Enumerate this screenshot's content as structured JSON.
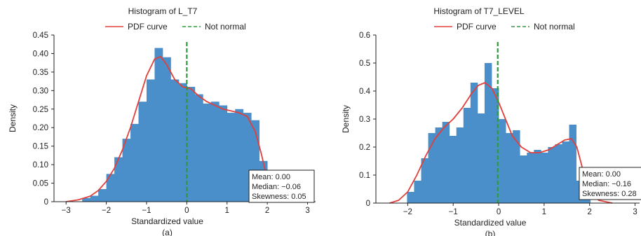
{
  "chart_data": [
    {
      "type": "bar",
      "title": "Histogram of L_T7",
      "panel_label": "(a)",
      "xlabel": "Standardized value",
      "ylabel": "Density",
      "xlim": [
        -3.3,
        3.2
      ],
      "ylim": [
        0,
        0.45
      ],
      "xticks": [
        -3,
        -2,
        -1,
        0,
        1,
        2,
        3
      ],
      "yticks": [
        0,
        0.05,
        0.1,
        0.15,
        0.2,
        0.25,
        0.3,
        0.35,
        0.4,
        0.45
      ],
      "xtick_labels": [
        "−3",
        "−2",
        "−1",
        "0",
        "1",
        "2",
        "3"
      ],
      "ytick_labels": [
        "0",
        "0.05",
        "0.10",
        "0.15",
        "0.20",
        "0.25",
        "0.30",
        "0.35",
        "0.40",
        "0.45"
      ],
      "bin_width": 0.2,
      "bins": [
        {
          "x0": -2.6,
          "density": 0.01
        },
        {
          "x0": -2.4,
          "density": 0.016
        },
        {
          "x0": -2.2,
          "density": 0.034
        },
        {
          "x0": -2.0,
          "density": 0.075
        },
        {
          "x0": -1.8,
          "density": 0.12
        },
        {
          "x0": -1.6,
          "density": 0.17
        },
        {
          "x0": -1.4,
          "density": 0.21
        },
        {
          "x0": -1.2,
          "density": 0.27
        },
        {
          "x0": -1.0,
          "density": 0.33
        },
        {
          "x0": -0.8,
          "density": 0.415
        },
        {
          "x0": -0.6,
          "density": 0.39
        },
        {
          "x0": -0.4,
          "density": 0.33
        },
        {
          "x0": -0.2,
          "density": 0.32
        },
        {
          "x0": 0.0,
          "density": 0.31
        },
        {
          "x0": 0.2,
          "density": 0.29
        },
        {
          "x0": 0.4,
          "density": 0.265
        },
        {
          "x0": 0.6,
          "density": 0.27
        },
        {
          "x0": 0.8,
          "density": 0.26
        },
        {
          "x0": 1.0,
          "density": 0.24
        },
        {
          "x0": 1.2,
          "density": 0.25
        },
        {
          "x0": 1.4,
          "density": 0.24
        },
        {
          "x0": 1.6,
          "density": 0.22
        },
        {
          "x0": 1.8,
          "density": 0.11
        },
        {
          "x0": 2.0,
          "density": 0.02
        }
      ],
      "series": [
        {
          "name": "PDF curve",
          "kind": "line",
          "color": "#e0403c",
          "x": [
            -3.0,
            -2.7,
            -2.4,
            -2.2,
            -2.0,
            -1.8,
            -1.6,
            -1.4,
            -1.2,
            -1.0,
            -0.8,
            -0.65,
            -0.5,
            -0.3,
            -0.1,
            0.1,
            0.3,
            0.5,
            0.7,
            0.9,
            1.1,
            1.3,
            1.5,
            1.7,
            1.85,
            2.0,
            2.2,
            2.5,
            2.8
          ],
          "y": [
            0.0,
            0.005,
            0.015,
            0.03,
            0.055,
            0.09,
            0.14,
            0.2,
            0.27,
            0.34,
            0.385,
            0.392,
            0.37,
            0.33,
            0.31,
            0.305,
            0.285,
            0.27,
            0.26,
            0.25,
            0.245,
            0.24,
            0.23,
            0.19,
            0.13,
            0.06,
            0.02,
            0.004,
            0.0
          ]
        },
        {
          "name": "Not normal",
          "kind": "vline",
          "x_value": 0.0,
          "color": "#2e9a3a"
        }
      ],
      "bar_color": "#4a8fca",
      "legend_position": "top-center",
      "stats_box": {
        "mean": "Mean: 0.00",
        "median": "Median: −0.06",
        "skewness": "Skewness: 0.05"
      }
    },
    {
      "type": "bar",
      "title": "Histogram of T7_LEVEL",
      "panel_label": "(b)",
      "xlabel": "Standardized value",
      "ylabel": "Density",
      "xlim": [
        -2.7,
        3.1
      ],
      "ylim": [
        0,
        0.6
      ],
      "xticks": [
        -2,
        -1,
        0,
        1,
        2,
        3
      ],
      "yticks": [
        0,
        0.1,
        0.2,
        0.3,
        0.4,
        0.5,
        0.6
      ],
      "xtick_labels": [
        "−2",
        "−1",
        "0",
        "1",
        "2",
        "3"
      ],
      "ytick_labels": [
        "0",
        "0.1",
        "0.2",
        "0.3",
        "0.4",
        "0.5",
        "0.6"
      ],
      "bin_width": 0.155,
      "bins": [
        {
          "x0": -2.015,
          "density": 0.04
        },
        {
          "x0": -1.86,
          "density": 0.08
        },
        {
          "x0": -1.705,
          "density": 0.16
        },
        {
          "x0": -1.55,
          "density": 0.25
        },
        {
          "x0": -1.395,
          "density": 0.27
        },
        {
          "x0": -1.24,
          "density": 0.29
        },
        {
          "x0": -1.085,
          "density": 0.24
        },
        {
          "x0": -0.93,
          "density": 0.27
        },
        {
          "x0": -0.775,
          "density": 0.34
        },
        {
          "x0": -0.62,
          "density": 0.43
        },
        {
          "x0": -0.465,
          "density": 0.32
        },
        {
          "x0": -0.31,
          "density": 0.5
        },
        {
          "x0": -0.155,
          "density": 0.41
        },
        {
          "x0": 0.0,
          "density": 0.3
        },
        {
          "x0": 0.155,
          "density": 0.25
        },
        {
          "x0": 0.31,
          "density": 0.26
        },
        {
          "x0": 0.465,
          "density": 0.17
        },
        {
          "x0": 0.62,
          "density": 0.18
        },
        {
          "x0": 0.775,
          "density": 0.19
        },
        {
          "x0": 0.93,
          "density": 0.18
        },
        {
          "x0": 1.085,
          "density": 0.2
        },
        {
          "x0": 1.24,
          "density": 0.21
        },
        {
          "x0": 1.395,
          "density": 0.22
        },
        {
          "x0": 1.55,
          "density": 0.28
        },
        {
          "x0": 1.705,
          "density": 0.08
        },
        {
          "x0": 1.86,
          "density": 0.02
        }
      ],
      "series": [
        {
          "name": "PDF curve",
          "kind": "line",
          "color": "#e0403c",
          "x": [
            -2.4,
            -2.2,
            -2.0,
            -1.8,
            -1.6,
            -1.4,
            -1.2,
            -1.0,
            -0.8,
            -0.6,
            -0.45,
            -0.3,
            -0.15,
            0.0,
            0.15,
            0.3,
            0.5,
            0.7,
            0.9,
            1.1,
            1.3,
            1.45,
            1.6,
            1.72,
            1.85,
            2.0,
            2.2,
            2.5
          ],
          "y": [
            0.0,
            0.01,
            0.04,
            0.1,
            0.17,
            0.23,
            0.27,
            0.3,
            0.34,
            0.39,
            0.42,
            0.43,
            0.41,
            0.36,
            0.3,
            0.24,
            0.2,
            0.18,
            0.18,
            0.19,
            0.21,
            0.225,
            0.23,
            0.2,
            0.12,
            0.05,
            0.01,
            0.0
          ]
        },
        {
          "name": "Not normal",
          "kind": "vline",
          "x_value": -0.02,
          "color": "#2e9a3a"
        }
      ],
      "bar_color": "#4a8fca",
      "legend_position": "top-center",
      "stats_box": {
        "mean": "Mean: 0.00",
        "median": "Median: −0.16",
        "skewness": "Skewness: 0.28"
      }
    }
  ]
}
